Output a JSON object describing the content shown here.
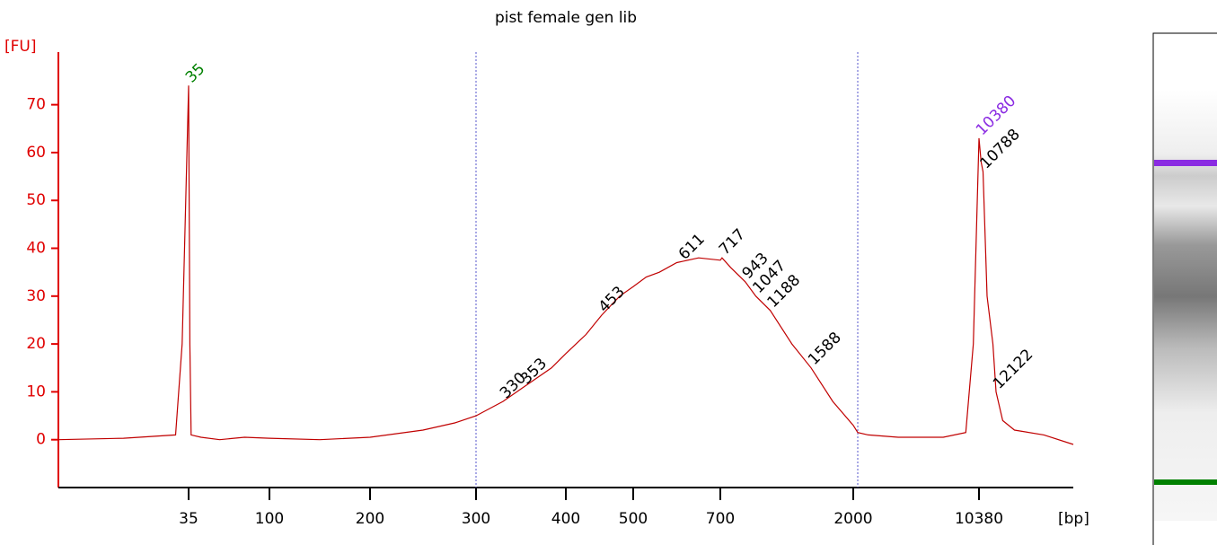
{
  "chart_data": {
    "type": "line",
    "title": "pist female gen lib",
    "ylabel": "[FU]",
    "xlabel": "[bp]",
    "color": "#c00000",
    "axis_color": "#e00000",
    "x": [
      15,
      25,
      33,
      34,
      35,
      36,
      37,
      45,
      60,
      80,
      100,
      150,
      200,
      250,
      280,
      300,
      330,
      353,
      384,
      400,
      430,
      453,
      480,
      500,
      530,
      560,
      600,
      650,
      700,
      717,
      800,
      943,
      1047,
      1188,
      1400,
      1588,
      1800,
      2000,
      2300,
      3000,
      5000,
      8000,
      9500,
      10000,
      10380,
      10600,
      10788,
      11200,
      11800,
      12122,
      12800,
      14000,
      17000,
      20000
    ],
    "values": [
      0,
      0.3,
      1,
      20,
      74,
      20,
      1,
      0.5,
      0,
      0.5,
      0.3,
      0,
      0.5,
      2,
      3.5,
      5,
      8,
      11,
      15,
      18,
      22,
      26,
      30,
      32,
      34,
      35,
      37,
      38,
      37.5,
      38,
      36,
      33,
      30,
      27,
      20,
      15,
      8,
      3,
      1.5,
      1,
      0.5,
      0.5,
      1.5,
      20,
      63,
      58,
      56,
      30,
      20,
      10,
      4,
      2,
      1,
      -1
    ],
    "xlim": [
      15,
      20000
    ],
    "xticks": [
      35,
      100,
      200,
      300,
      400,
      500,
      700,
      2000,
      10380
    ],
    "ylim": [
      -10,
      81
    ],
    "yticks": [
      0,
      10,
      20,
      30,
      40,
      50,
      60,
      70
    ],
    "region_bounds": [
      300,
      2300
    ],
    "annotations": [
      {
        "label": "35",
        "x": 35,
        "y": 74,
        "color": "#008000"
      },
      {
        "label": "330",
        "x": 330,
        "y": 8,
        "color": "#000000"
      },
      {
        "label": "353",
        "x": 353,
        "y": 11,
        "color": "#000000"
      },
      {
        "label": "453",
        "x": 453,
        "y": 26,
        "color": "#000000"
      },
      {
        "label": "611",
        "x": 611,
        "y": 37,
        "color": "#000000"
      },
      {
        "label": "717",
        "x": 717,
        "y": 38,
        "color": "#000000"
      },
      {
        "label": "943",
        "x": 943,
        "y": 33,
        "color": "#000000"
      },
      {
        "label": "1047",
        "x": 1047,
        "y": 30,
        "color": "#000000"
      },
      {
        "label": "1188",
        "x": 1188,
        "y": 27,
        "color": "#000000"
      },
      {
        "label": "1588",
        "x": 1588,
        "y": 15,
        "color": "#000000"
      },
      {
        "label": "10380",
        "x": 10380,
        "y": 63,
        "color": "#8a2be2"
      },
      {
        "label": "10788",
        "x": 10788,
        "y": 56,
        "color": "#000000"
      },
      {
        "label": "12122",
        "x": 12122,
        "y": 10,
        "color": "#000000"
      }
    ]
  }
}
